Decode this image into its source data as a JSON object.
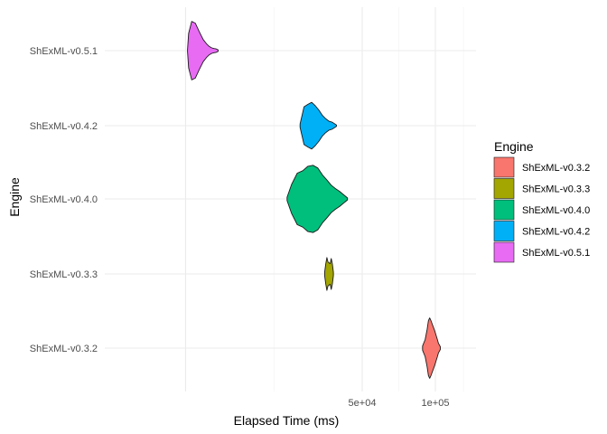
{
  "chart_data": {
    "type": "violin",
    "orientation": "horizontal",
    "title": "",
    "xlabel": "Elapsed Time (ms)",
    "ylabel": "Engine",
    "x_scale": "sqrt",
    "xlim": [
      0,
      120000
    ],
    "x_ticks": [
      {
        "value": 50000,
        "label": "5e+04"
      },
      {
        "value": 100000,
        "label": "1e+05"
      }
    ],
    "grid": true,
    "legend": {
      "title": "Engine",
      "position": "right"
    },
    "categories": [
      "ShExML-v0.3.2",
      "ShExML-v0.3.3",
      "ShExML-v0.4.0",
      "ShExML-v0.4.2",
      "ShExML-v0.5.1"
    ],
    "series": [
      {
        "name": "ShExML-v0.3.2",
        "color": "#F8766D",
        "min": 90000,
        "max": 104000,
        "density": [
          [
            90000,
            0.06
          ],
          [
            92000,
            0.25
          ],
          [
            93500,
            0.55
          ],
          [
            94500,
            0.8
          ],
          [
            95500,
            0.88
          ],
          [
            96500,
            0.8
          ],
          [
            97500,
            0.7
          ],
          [
            98500,
            0.6
          ],
          [
            99500,
            0.5
          ],
          [
            100500,
            0.38
          ],
          [
            101500,
            0.26
          ],
          [
            102500,
            0.14
          ],
          [
            104000,
            0.04
          ]
        ]
      },
      {
        "name": "ShExML-v0.3.3",
        "color": "#A3A500",
        "min": 31000,
        "max": 35000,
        "density": [
          [
            31000,
            0.05
          ],
          [
            31500,
            0.3
          ],
          [
            32000,
            0.48
          ],
          [
            32500,
            0.35
          ],
          [
            33000,
            0.32
          ],
          [
            33500,
            0.3
          ],
          [
            34000,
            0.45
          ],
          [
            34500,
            0.3
          ],
          [
            35000,
            0.05
          ]
        ]
      },
      {
        "name": "ShExML-v0.4.0",
        "color": "#00BF7D",
        "min": 16500,
        "max": 42000,
        "density": [
          [
            16500,
            0.05
          ],
          [
            18000,
            0.42
          ],
          [
            20000,
            0.75
          ],
          [
            22000,
            0.82
          ],
          [
            24000,
            0.95
          ],
          [
            26000,
            0.98
          ],
          [
            28000,
            0.9
          ],
          [
            30000,
            0.7
          ],
          [
            32000,
            0.55
          ],
          [
            34000,
            0.4
          ],
          [
            36000,
            0.3
          ],
          [
            38000,
            0.22
          ],
          [
            40000,
            0.12
          ],
          [
            42000,
            0.03
          ]
        ]
      },
      {
        "name": "ShExML-v0.4.2",
        "color": "#00B0F6",
        "min": 21000,
        "max": 36500,
        "density": [
          [
            21000,
            0.05
          ],
          [
            22500,
            0.55
          ],
          [
            24000,
            0.62
          ],
          [
            25500,
            0.68
          ],
          [
            27000,
            0.58
          ],
          [
            28500,
            0.45
          ],
          [
            30000,
            0.3
          ],
          [
            31500,
            0.2
          ],
          [
            33000,
            0.13
          ],
          [
            34500,
            0.1
          ],
          [
            36500,
            0.02
          ]
        ]
      },
      {
        "name": "ShExML-v0.5.1",
        "color": "#E76BF3",
        "min": 6,
        "max": 1700,
        "density": [
          [
            6,
            0.03
          ],
          [
            15,
            0.5
          ],
          [
            60,
            0.85
          ],
          [
            150,
            0.8
          ],
          [
            300,
            0.55
          ],
          [
            500,
            0.32
          ],
          [
            700,
            0.2
          ],
          [
            900,
            0.12
          ],
          [
            1100,
            0.08
          ],
          [
            1300,
            0.06
          ],
          [
            1500,
            0.05
          ],
          [
            1700,
            0.02
          ]
        ]
      }
    ]
  }
}
